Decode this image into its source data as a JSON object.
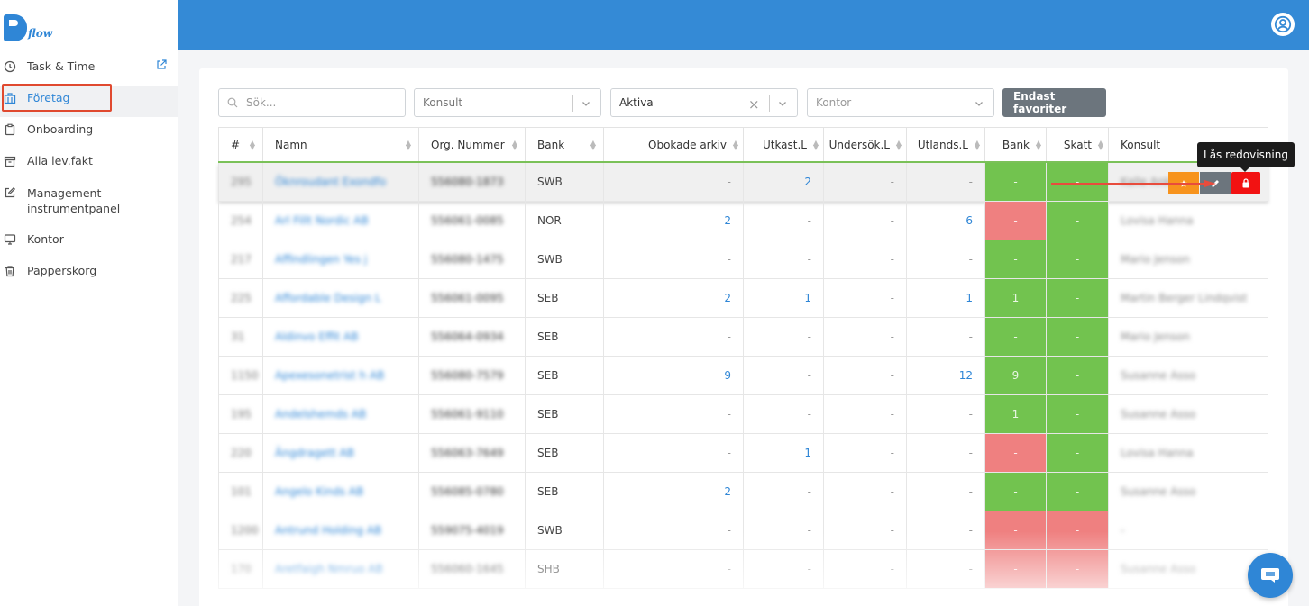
{
  "brand": {
    "logo_text": "flow"
  },
  "sidebar": {
    "items": [
      {
        "label": "Task & Time",
        "icon": "clock-icon"
      },
      {
        "label": "Företag",
        "icon": "building-icon"
      },
      {
        "label": "Onboarding",
        "icon": "clipboard-icon"
      },
      {
        "label": "Alla lev.fakt",
        "icon": "archive-icon"
      },
      {
        "label": "Management instrumentpanel",
        "icon": "edit-icon"
      },
      {
        "label": "Kontor",
        "icon": "monitor-icon"
      },
      {
        "label": "Papperskorg",
        "icon": "trash-icon"
      }
    ]
  },
  "filters": {
    "search_placeholder": "Sök...",
    "konsult_placeholder": "Konsult",
    "status_value": "Aktiva",
    "kontor_placeholder": "Kontor",
    "favorites_button": "Endast favoriter"
  },
  "table": {
    "headers": {
      "idx": "#",
      "namn": "Namn",
      "org": "Org. Nummer",
      "bank": "Bank",
      "obokade": "Obokade arkiv",
      "utkast": "Utkast.L",
      "undersok": "Undersök.L",
      "utlands": "Utlands.L",
      "bank_status": "Bank",
      "skatt": "Skatt",
      "konsult": "Konsult"
    },
    "rows": [
      {
        "idx": "295",
        "name": "Öknroudant Exondfo",
        "org": "556080-1873",
        "bank": "SWB",
        "obokade": "-",
        "utkast": "2",
        "undersok": "-",
        "utlands": "-",
        "bank_s": "-",
        "bank_c": "green",
        "skatt": "-",
        "skatt_c": "green",
        "konsult": "Kalle Ankas"
      },
      {
        "idx": "254",
        "name": "Arl Fillt Nordic AB",
        "org": "556061-0085",
        "bank": "NOR",
        "obokade": "2",
        "utkast": "-",
        "undersok": "-",
        "utlands": "6",
        "bank_s": "-",
        "bank_c": "red",
        "skatt": "-",
        "skatt_c": "green",
        "konsult": "Lovisa Hanna"
      },
      {
        "idx": "217",
        "name": "Affindlingen Yes j",
        "org": "556080-1475",
        "bank": "SWB",
        "obokade": "-",
        "utkast": "-",
        "undersok": "-",
        "utlands": "-",
        "bank_s": "-",
        "bank_c": "green",
        "skatt": "-",
        "skatt_c": "green",
        "konsult": "Mario Jenson"
      },
      {
        "idx": "225",
        "name": "Affordable Design L",
        "org": "556061-0095",
        "bank": "SEB",
        "obokade": "2",
        "utkast": "1",
        "undersok": "-",
        "utlands": "1",
        "bank_s": "1",
        "bank_c": "green",
        "skatt": "-",
        "skatt_c": "green",
        "konsult": "Martin Berger Lindqvist"
      },
      {
        "idx": "31",
        "name": "Aldinvo Effit AB",
        "org": "556064-0934",
        "bank": "SEB",
        "obokade": "-",
        "utkast": "-",
        "undersok": "-",
        "utlands": "-",
        "bank_s": "-",
        "bank_c": "green",
        "skatt": "-",
        "skatt_c": "green",
        "konsult": "Mario Jenson"
      },
      {
        "idx": "1150",
        "name": "Apexesonetrist h AB",
        "org": "556080-7579",
        "bank": "SEB",
        "obokade": "9",
        "utkast": "-",
        "undersok": "-",
        "utlands": "12",
        "bank_s": "9",
        "bank_c": "green",
        "skatt": "-",
        "skatt_c": "green",
        "konsult": "Susanne Asso"
      },
      {
        "idx": "195",
        "name": "Andelshemds AB",
        "org": "556061-9110",
        "bank": "SEB",
        "obokade": "-",
        "utkast": "-",
        "undersok": "-",
        "utlands": "-",
        "bank_s": "1",
        "bank_c": "green",
        "skatt": "-",
        "skatt_c": "green",
        "konsult": "Susanne Asso"
      },
      {
        "idx": "220",
        "name": "Ängdragett AB",
        "org": "556063-7649",
        "bank": "SEB",
        "obokade": "-",
        "utkast": "1",
        "undersok": "-",
        "utlands": "-",
        "bank_s": "-",
        "bank_c": "red",
        "skatt": "-",
        "skatt_c": "green",
        "konsult": "Lovisa Hanna"
      },
      {
        "idx": "101",
        "name": "Angelo Kinds AB",
        "org": "556085-0780",
        "bank": "SEB",
        "obokade": "2",
        "utkast": "-",
        "undersok": "-",
        "utlands": "-",
        "bank_s": "-",
        "bank_c": "green",
        "skatt": "-",
        "skatt_c": "green",
        "konsult": "Susanne Asso"
      },
      {
        "idx": "1200",
        "name": "Antrund Holding AB",
        "org": "559075-4019",
        "bank": "SWB",
        "obokade": "-",
        "utkast": "-",
        "undersok": "-",
        "utlands": "-",
        "bank_s": "-",
        "bank_c": "red",
        "skatt": "-",
        "skatt_c": "red",
        "konsult": "-"
      },
      {
        "idx": "170",
        "name": "Aretfaigh Nmruo AB",
        "org": "556060-1645",
        "bank": "SHB",
        "obokade": "-",
        "utkast": "-",
        "undersok": "-",
        "utlands": "-",
        "bank_s": "-",
        "bank_c": "red",
        "skatt": "-",
        "skatt_c": "red",
        "konsult": "Susanne Asso"
      }
    ]
  },
  "tooltip": {
    "text": "Lås redovisning"
  },
  "colors": {
    "header_blue": "#348ad6",
    "status_green": "#72c34f",
    "status_red": "#ef8080",
    "lock_red": "#f21212",
    "accent_orange": "#f7931d"
  }
}
